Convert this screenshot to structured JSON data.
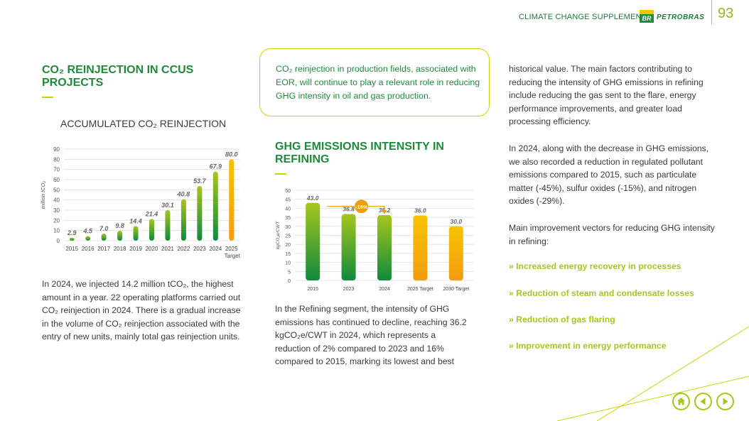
{
  "header": {
    "label": "CLIMATE CHANGE SUPPLEMENT",
    "logo_text": "BR",
    "brand": "PETROBRAS",
    "page_number": "93"
  },
  "section1": {
    "title": "CO₂ REINJECTION IN CCUS PROJECTS"
  },
  "section2": {
    "title": "GHG EMISSIONS INTENSITY IN REFINING"
  },
  "callout": {
    "text": "CO₂ reinjection in production fields, associated with EOR, will continue to play a relevant role in reducing GHG intensity in oil and gas production."
  },
  "paragraphs": {
    "p1": "In 2024, we injected 14.2 million tCO₂, the highest amount in a year. 22 operating platforms carried out CO₂ reinjection in 2024. There is a gradual increase in the volume of CO₂ reinjection associated with the entry of new units, mainly total gas reinjection units.",
    "p2": "In the Refining segment, the intensity of GHG emissions has continued to decline, reaching 36.2 kgCO₂e/CWT in 2024, which represents a reduction of 2% compared to 2023 and 16% compared to 2015, marking its lowest and best",
    "p3": "historical value. The main factors contributing to reducing the intensity of GHG emissions in refining include reducing the gas sent to the flare, energy performance improvements, and greater load processing efficiency.",
    "p4": "In 2024, along with the decrease in GHG emissions, we also recorded a reduction in regulated pollutant emissions compared to 2015, such as particulate matter (-45%), sulfur oxides (-15%), and nitrogen oxides (-29%).",
    "p5": "Main improvement vectors for reducing GHG intensity in refining:"
  },
  "bullets": [
    "» Increased energy recovery in processes",
    "» Reduction of steam and condensate losses",
    "» Reduction of gas flaring",
    "» Improvement in energy performance"
  ],
  "colors": {
    "dark_green": "#1f8a3c",
    "light_green": "#a6c61e",
    "yellow": "#c8d400",
    "orange": "#f39c12",
    "grid": "#dddddd"
  },
  "chart_data": [
    {
      "type": "bar",
      "title": "ACCUMULATED CO₂ REINJECTION",
      "ylabel": "million tCO₂",
      "xlabel": "",
      "ylim": [
        0,
        90
      ],
      "yticks": [
        0,
        10,
        20,
        30,
        40,
        50,
        60,
        70,
        80,
        90
      ],
      "categories": [
        "2015",
        "2016",
        "2017",
        "2018",
        "2019",
        "2020",
        "2021",
        "2022",
        "2023",
        "2024",
        "2025"
      ],
      "category_note": "Target",
      "values": [
        2.9,
        4.5,
        7.0,
        9.8,
        14.4,
        21.4,
        30.1,
        40.8,
        53.7,
        67.9,
        80.0
      ],
      "labels": [
        "2.9",
        "4.5",
        "7.0",
        "9.8",
        "14.4",
        "21.4",
        "30.1",
        "40.8",
        "53.7",
        "67.9",
        "80.0"
      ],
      "kinds": [
        "actual",
        "actual",
        "actual",
        "actual",
        "actual",
        "actual",
        "actual",
        "actual",
        "actual",
        "actual",
        "target"
      ],
      "grid": true
    },
    {
      "type": "bar",
      "title": "",
      "ylabel": "kgCO₂e/CWT",
      "xlabel": "",
      "ylim": [
        0,
        50
      ],
      "yticks": [
        0,
        5,
        10,
        15,
        20,
        25,
        30,
        35,
        40,
        45,
        50
      ],
      "categories": [
        "2015",
        "2023",
        "2024",
        "2025 Target",
        "2030 Target"
      ],
      "values": [
        43.0,
        36.8,
        36.2,
        36.0,
        30.0
      ],
      "labels": [
        "43.0",
        "36.8",
        "36.2",
        "36.0",
        "30.0"
      ],
      "kinds": [
        "actual",
        "actual",
        "actual",
        "target",
        "target"
      ],
      "annotation": "-16%",
      "grid": true
    }
  ]
}
